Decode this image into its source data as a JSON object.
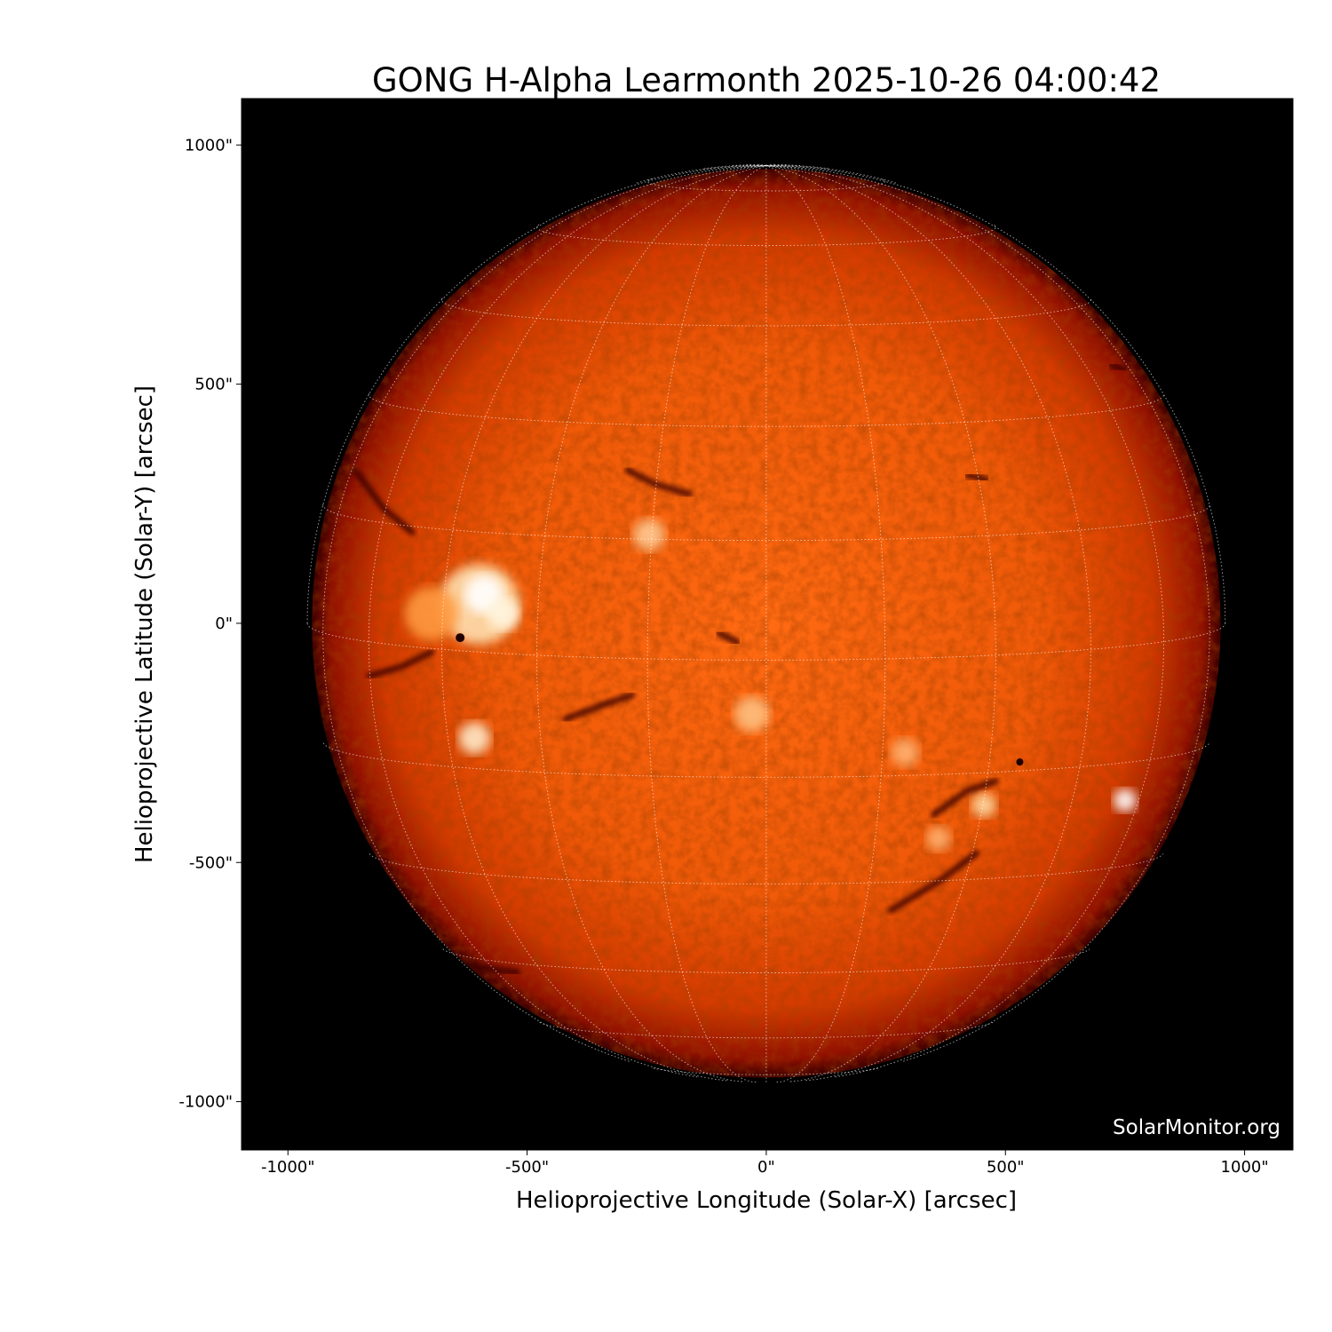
{
  "chart_data": {
    "type": "heatmap",
    "title": "GONG H-Alpha Learmonth 2025-10-26 04:00:42",
    "xlabel": "Helioprojective Longitude (Solar-X) [arcsec]",
    "ylabel": "Helioprojective Latitude (Solar-Y) [arcsec]",
    "xlim": [
      -1097,
      1101
    ],
    "ylim": [
      -1101,
      1097
    ],
    "xticks": [
      {
        "value": -1000,
        "label": "-1000\""
      },
      {
        "value": -500,
        "label": "-500\""
      },
      {
        "value": 0,
        "label": "0\""
      },
      {
        "value": 500,
        "label": "500\""
      },
      {
        "value": 1000,
        "label": "1000\""
      }
    ],
    "yticks": [
      {
        "value": 1000,
        "label": "1000\""
      },
      {
        "value": 500,
        "label": "500\""
      },
      {
        "value": 0,
        "label": "0\""
      },
      {
        "value": -500,
        "label": "-500\""
      },
      {
        "value": -1000,
        "label": "-1000\""
      }
    ],
    "solar_radius_arcsec": 950,
    "grid": {
      "type": "heliographic",
      "spacing_deg": 15,
      "style": "dotted",
      "color": "#ffffff"
    },
    "colormap": [
      "#000000",
      "#8a0a00",
      "#d83000",
      "#ff6a10",
      "#ffffff"
    ],
    "watermark": "SolarMonitor.org"
  }
}
